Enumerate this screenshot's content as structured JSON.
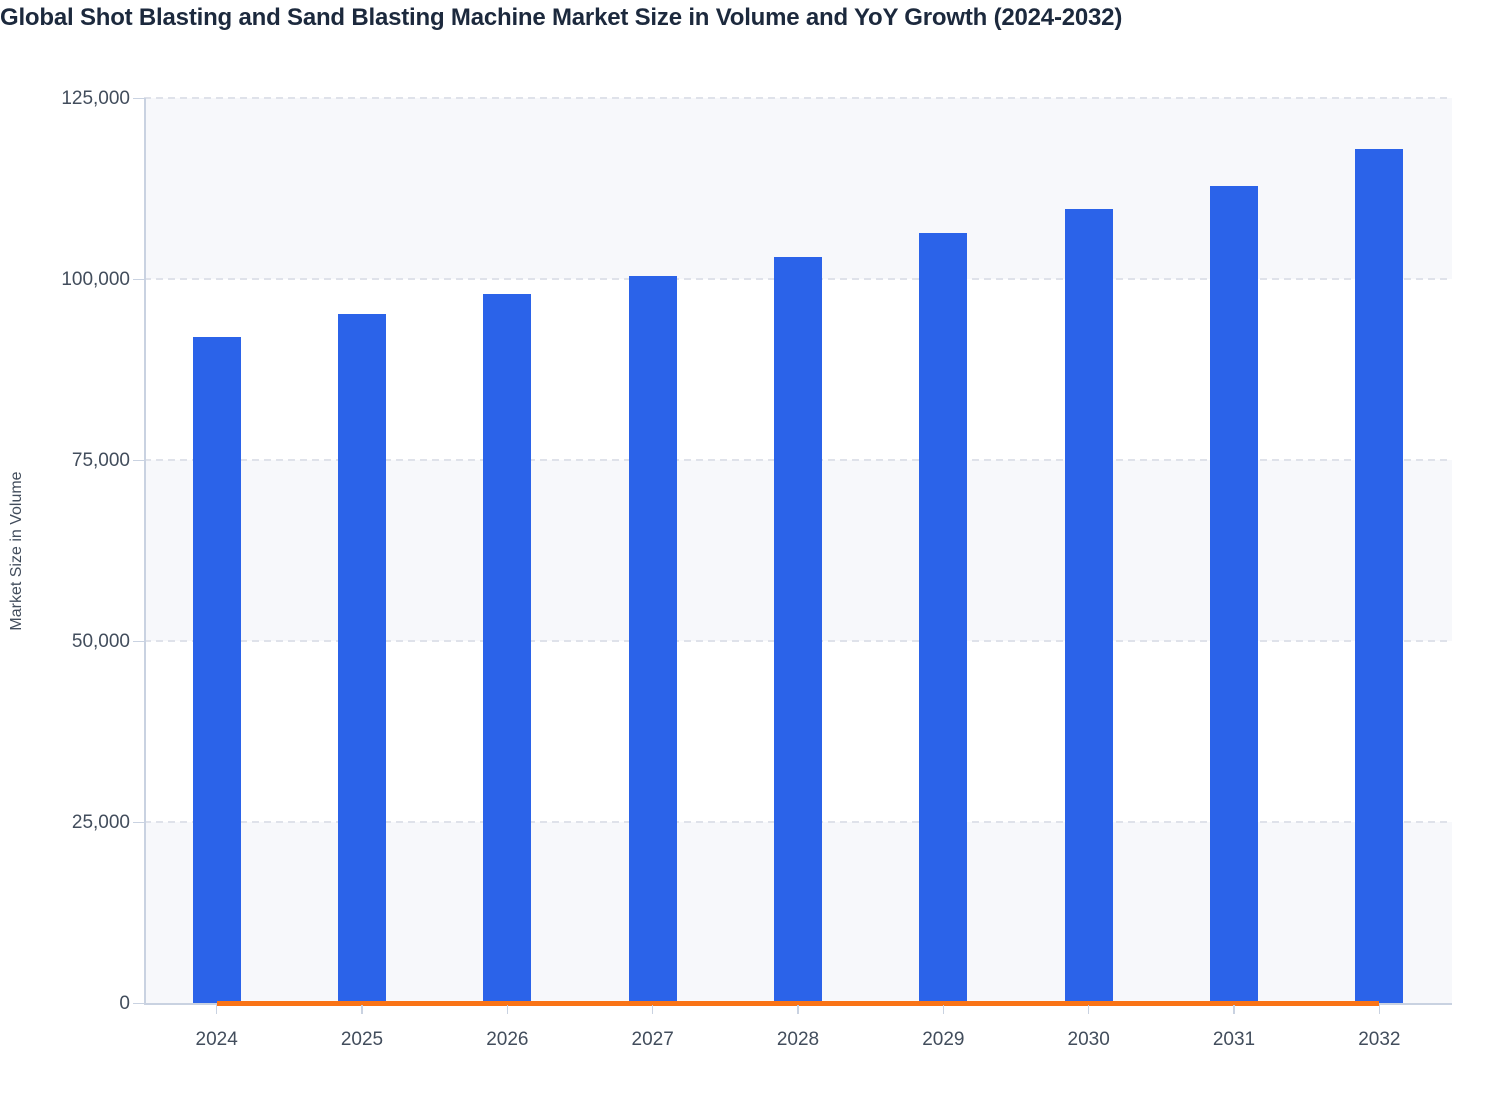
{
  "page": {
    "title": "Global Shot Blasting and Sand Blasting Machine Market Size in Volume and YoY Growth (2024-2032)"
  },
  "chart_data": {
    "type": "bar",
    "title": "Global Shot Blasting and Sand Blasting Machine Market Size in Volume and YoY Growth (2024-2032)",
    "categories": [
      "2024",
      "2025",
      "2026",
      "2027",
      "2028",
      "2029",
      "2030",
      "2031",
      "2032"
    ],
    "series": [
      {
        "name": "Market Size in Volume",
        "type": "bar",
        "values": [
          92000,
          95100,
          97900,
          100400,
          103100,
          106300,
          109600,
          112900,
          117900
        ]
      },
      {
        "name": "YoY Growth",
        "type": "line",
        "values": [
          0,
          0,
          0,
          0,
          0,
          0,
          0,
          0,
          0
        ],
        "note": "YoY growth is plotted against the same volume axis, so the line renders flat along the zero baseline from 2024 to 2032"
      }
    ],
    "xlabel": "",
    "ylabel": "Market Size in Volume",
    "ylim": [
      0,
      125000
    ],
    "ytick_step": 25000,
    "ytick_labels": [
      "0",
      "25,000",
      "50,000",
      "75,000",
      "100,000",
      "125,000"
    ],
    "grid": "horizontal dashed gridlines at every 25,000",
    "plot_bands": "alternating light bands between gridlines (0-25k, 50k-75k, 100k-125k shaded)",
    "legend": "none"
  },
  "colors": {
    "bar": "#2b63e9",
    "yoy_line": "#f97316",
    "title_text": "#1c293d",
    "axis_label_text": "#424d5c",
    "axis_line": "#c9d2e1",
    "gridline": "#dfe2ea",
    "plot_band": "#f7f8fb",
    "background": "#ffffff"
  }
}
